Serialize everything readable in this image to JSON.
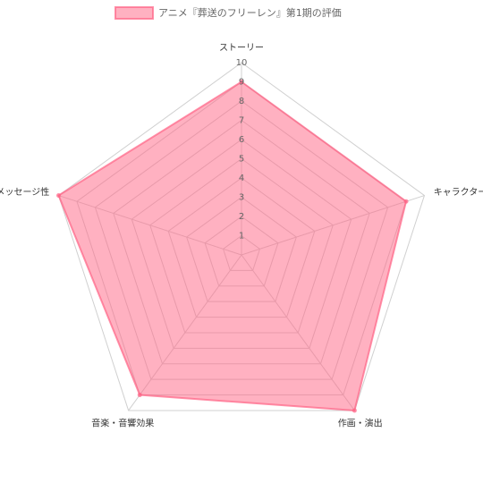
{
  "chart_data": {
    "type": "radar",
    "categories": [
      "ストーリー",
      "キャラクター",
      "作画・演出",
      "音楽・音響効果",
      "メッセージ性"
    ],
    "series": [
      {
        "name": "アニメ『葬送のフリーレン』第1期の評価",
        "color": "#ff6384",
        "values": [
          9,
          9,
          10,
          9,
          10
        ]
      }
    ],
    "rlim": [
      0,
      10
    ],
    "rticks": [
      1,
      2,
      3,
      4,
      5,
      6,
      7,
      8,
      9,
      10
    ],
    "grid": true,
    "legend": "top"
  }
}
